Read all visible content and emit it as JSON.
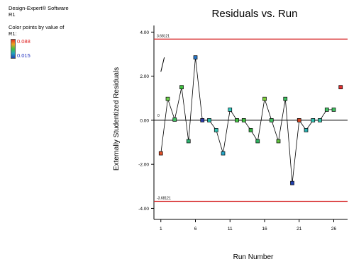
{
  "sidebar": {
    "software": "Design-Expert® Software",
    "response": "R1",
    "color_title": "Color points by value of",
    "color_response": "R1:",
    "color_max": "0.088",
    "color_min": "0.015"
  },
  "chart_data": {
    "type": "scatter",
    "title": "Residuals vs. Run",
    "xlabel": "Run Number",
    "ylabel": "Externally Studentized Residuals",
    "xlim": [
      0,
      28
    ],
    "ylim": [
      -4.5,
      4.3
    ],
    "xticks": [
      1,
      6,
      11,
      16,
      21,
      26
    ],
    "yticks": [
      4.0,
      2.0,
      0.0,
      -2.0,
      -4.0
    ],
    "ytick_labels": [
      "4.00",
      "2.00",
      "0.00",
      "-2.00",
      "-4.00"
    ],
    "upper_limit": 3.68121,
    "lower_limit": -3.68121,
    "upper_limit_label": "3.68121",
    "lower_limit_label": "-3.68121",
    "zero_label": "0",
    "limit_color": "#d62728",
    "series": [
      {
        "x": [
          1,
          2,
          3,
          4,
          5,
          6,
          7,
          8,
          9,
          10,
          11,
          12,
          13,
          14,
          15,
          16,
          17,
          18,
          19,
          20,
          21,
          22,
          23,
          24,
          25,
          26,
          27
        ],
        "y": [
          -1.5,
          0.97,
          0.03,
          1.5,
          -0.95,
          2.85,
          0.0,
          0.0,
          -0.45,
          -1.5,
          0.48,
          0.0,
          0.0,
          -0.45,
          -0.95,
          0.97,
          0.0,
          -0.95,
          0.97,
          -2.85,
          0.0,
          -0.45,
          0.0,
          0.0,
          0.48,
          0.48,
          1.5
        ],
        "colors": [
          "#e0502a",
          "#6cd04a",
          "#40c060",
          "#40c040",
          "#30b070",
          "#2a78c8",
          "#2a3aa8",
          "#20b8a8",
          "#30c0b0",
          "#28a8c8",
          "#30c8c0",
          "#40c040",
          "#40c040",
          "#30b040",
          "#30b060",
          "#80d040",
          "#40c060",
          "#60c040",
          "#40c060",
          "#2040b0",
          "#d04020",
          "#28b0b0",
          "#30c0b0",
          "#30c0a8",
          "#40c060",
          "#40c060",
          "#e03030"
        ]
      }
    ],
    "connected_runs": 26
  }
}
